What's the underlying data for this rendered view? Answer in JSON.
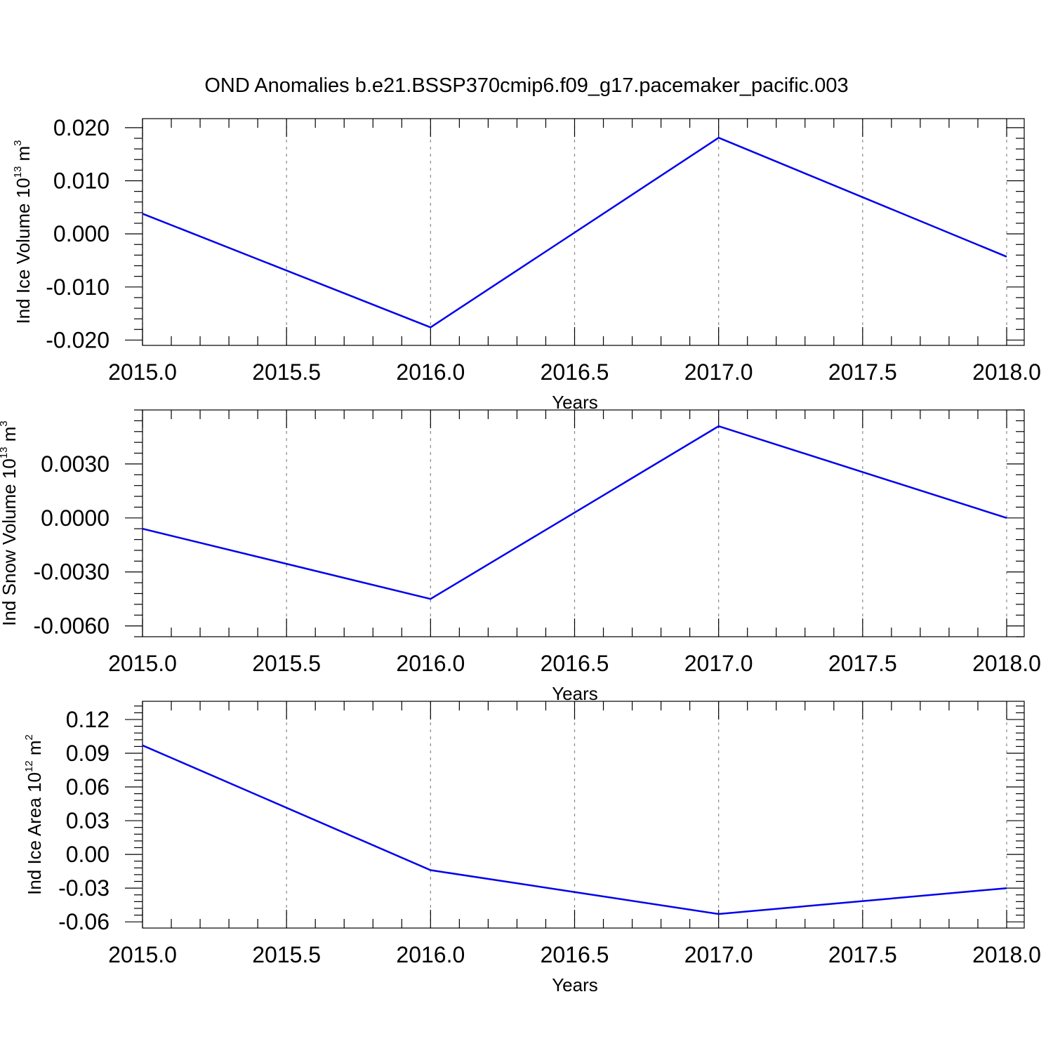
{
  "title": "OND Anomalies b.e21.BSSP370cmip6.f09_g17.pacemaker_pacific.003",
  "colors": {
    "line": "#0000ee",
    "grid": "#888888",
    "frame": "#000000"
  },
  "chart_data": [
    {
      "type": "line",
      "ylabel": {
        "text": "Ind Ice Volume 10",
        "sup": "13",
        "unit": " m",
        "unit_sup": "3"
      },
      "xlabel": "Years",
      "xlim": [
        2015.0,
        2018.0
      ],
      "ylim": [
        -0.021,
        0.0217
      ],
      "xticks": [
        "2015.0",
        "2015.5",
        "2016.0",
        "2016.5",
        "2017.0",
        "2017.5",
        "2018.0"
      ],
      "yticks": [
        "-0.020",
        "-0.010",
        "0.000",
        "0.010",
        "0.020"
      ],
      "grid": "vertical-dashed",
      "x": [
        2015,
        2016,
        2017,
        2018
      ],
      "values": [
        0.0038,
        -0.0176,
        0.0181,
        -0.0043
      ]
    },
    {
      "type": "line",
      "ylabel": {
        "text": "Ind Snow Volume 10",
        "sup": "13",
        "unit": " m",
        "unit_sup": "3"
      },
      "xlabel": "Years",
      "xlim": [
        2015.0,
        2018.0
      ],
      "ylim": [
        -0.0066,
        0.006
      ],
      "xticks": [
        "2015.0",
        "2015.5",
        "2016.0",
        "2016.5",
        "2017.0",
        "2017.5",
        "2018.0"
      ],
      "yticks": [
        "-0.0060",
        "-0.0030",
        "0.0000",
        "0.0030"
      ],
      "grid": "vertical-dashed",
      "x": [
        2015,
        2016,
        2017,
        2018
      ],
      "values": [
        -0.0006,
        -0.0045,
        0.0051,
        0.0
      ]
    },
    {
      "type": "line",
      "ylabel": {
        "text": "Ind Ice Area 10",
        "sup": "12",
        "unit": " m",
        "unit_sup": "2"
      },
      "xlabel": "Years",
      "xlim": [
        2015.0,
        2018.0
      ],
      "ylim": [
        -0.0655,
        0.1362
      ],
      "xticks": [
        "2015.0",
        "2015.5",
        "2016.0",
        "2016.5",
        "2017.0",
        "2017.5",
        "2018.0"
      ],
      "yticks": [
        "-0.06",
        "-0.03",
        "0.00",
        "0.03",
        "0.06",
        "0.09",
        "0.12"
      ],
      "grid": "vertical-dashed",
      "x": [
        2015,
        2016,
        2017,
        2018
      ],
      "values": [
        0.097,
        -0.014,
        -0.053,
        -0.03
      ]
    }
  ]
}
